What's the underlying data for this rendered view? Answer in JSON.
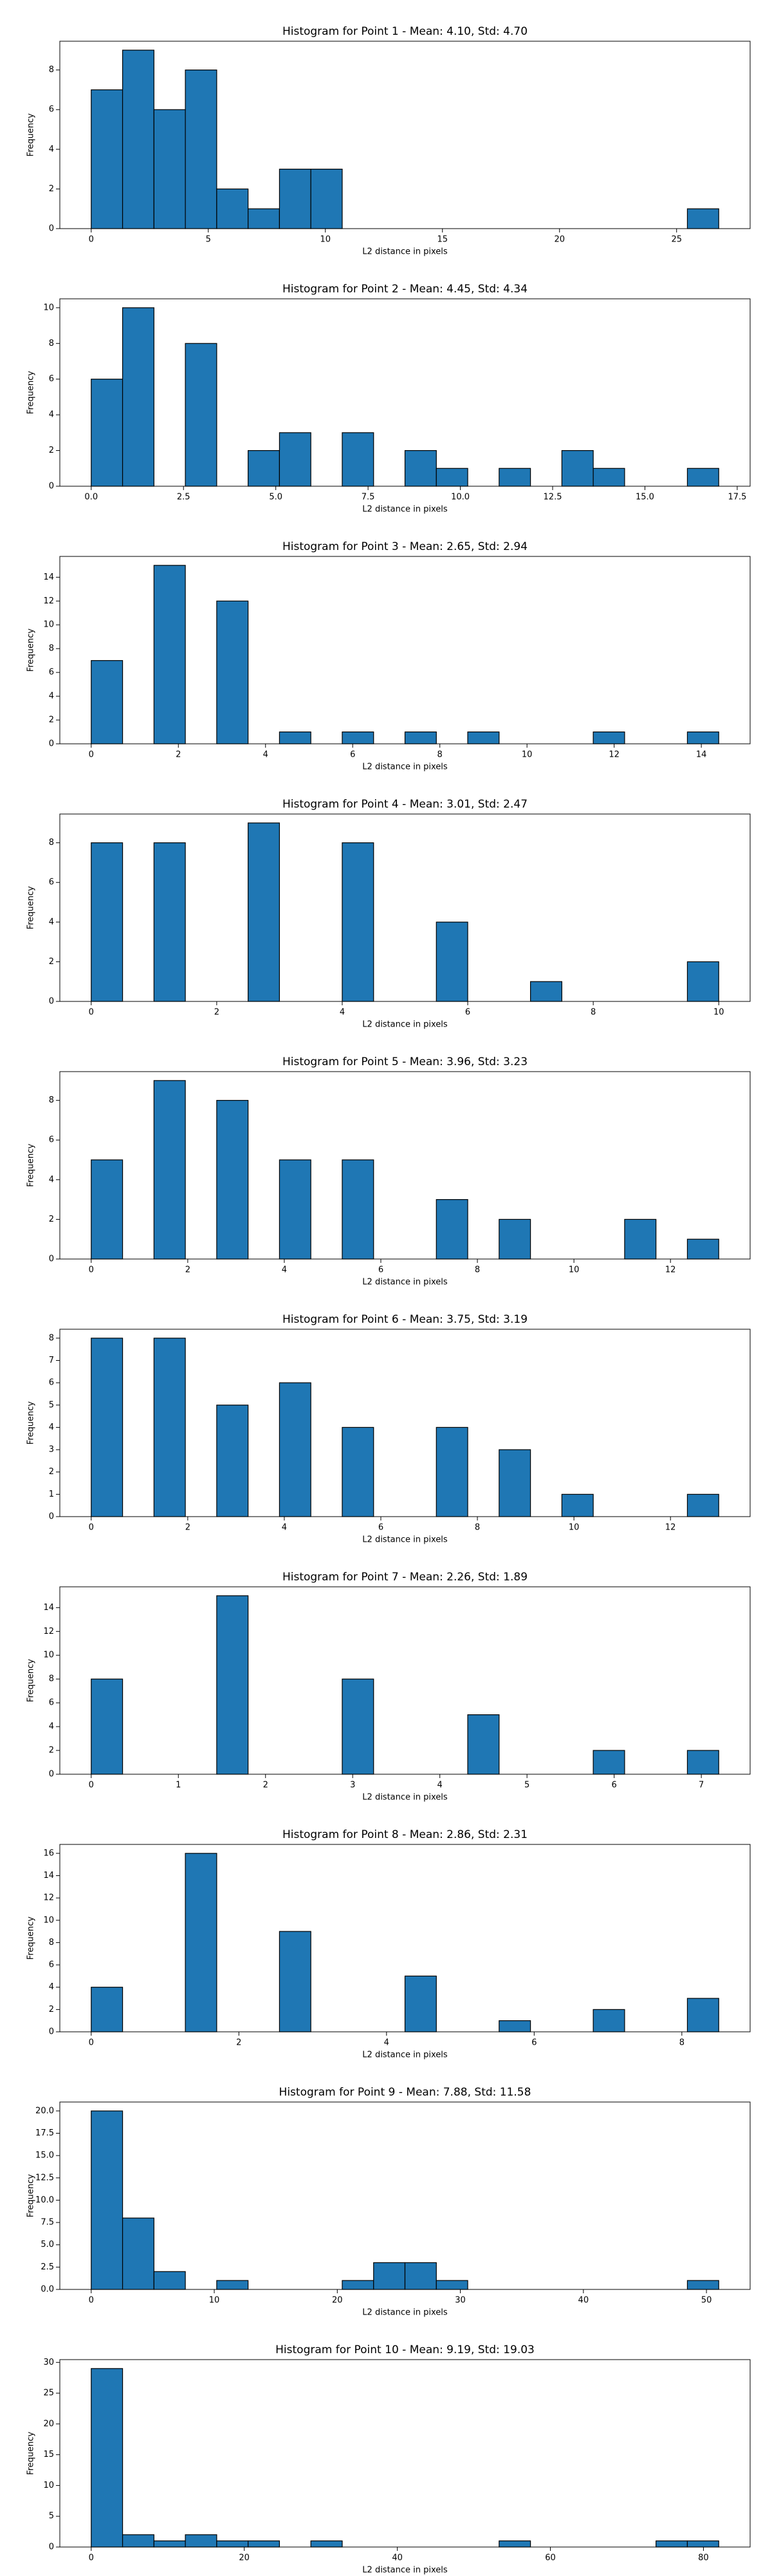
{
  "chart_data": [
    {
      "type": "histogram",
      "title": "Histogram for Point 1 - Mean: 4.10, Std: 4.70",
      "xlabel": "L2 distance in pixels",
      "ylabel": "Frequency",
      "color": "#1f77b4",
      "edgecolor": "#000000",
      "bins": [
        0,
        1.34,
        2.68,
        4.02,
        5.36,
        6.7,
        8.04,
        9.38,
        10.72,
        12.06,
        13.4,
        14.74,
        16.08,
        17.42,
        18.76,
        20.1,
        21.44,
        22.78,
        24.12,
        25.46,
        26.8
      ],
      "values": [
        7,
        9,
        6,
        8,
        2,
        1,
        3,
        3,
        0,
        0,
        0,
        0,
        0,
        0,
        0,
        0,
        0,
        0,
        0,
        1
      ],
      "xlim": [
        -1.34,
        28.14
      ],
      "ylim": [
        0,
        9.45
      ],
      "xticks": [
        0,
        5,
        10,
        15,
        20,
        25
      ],
      "yticks": [
        0,
        2,
        4,
        6,
        8
      ]
    },
    {
      "type": "histogram",
      "title": "Histogram for Point 2 - Mean: 4.45, Std: 4.34",
      "xlabel": "L2 distance in pixels",
      "ylabel": "Frequency",
      "color": "#1f77b4",
      "edgecolor": "#000000",
      "bins": [
        0,
        0.85,
        1.7,
        2.55,
        3.4,
        4.25,
        5.1,
        5.95,
        6.8,
        7.65,
        8.5,
        9.35,
        10.2,
        11.05,
        11.9,
        12.75,
        13.6,
        14.45,
        15.3,
        16.15,
        17
      ],
      "values": [
        6,
        10,
        0,
        8,
        0,
        2,
        3,
        0,
        3,
        0,
        2,
        1,
        0,
        1,
        0,
        2,
        1,
        0,
        0,
        1
      ],
      "xlim": [
        -0.85,
        17.85
      ],
      "ylim": [
        0,
        10.5
      ],
      "xticks": [
        {
          "value": 0,
          "label": "0.0"
        },
        2.5,
        {
          "value": 5,
          "label": "5.0"
        },
        7.5,
        {
          "value": 10,
          "label": "10.0"
        },
        12.5,
        {
          "value": 15,
          "label": "15.0"
        },
        17.5
      ],
      "yticks": [
        0,
        2,
        4,
        6,
        8,
        10
      ]
    },
    {
      "type": "histogram",
      "title": "Histogram for Point 3 - Mean: 2.65, Std: 2.94",
      "xlabel": "L2 distance in pixels",
      "ylabel": "Frequency",
      "color": "#1f77b4",
      "edgecolor": "#000000",
      "bins": [
        0,
        0.72,
        1.44,
        2.16,
        2.88,
        3.6,
        4.32,
        5.04,
        5.76,
        6.48,
        7.2,
        7.92,
        8.64,
        9.36,
        10.08,
        10.8,
        11.52,
        12.24,
        12.96,
        13.68,
        14.4
      ],
      "values": [
        7,
        0,
        15,
        0,
        12,
        0,
        1,
        0,
        1,
        0,
        1,
        0,
        1,
        0,
        0,
        0,
        1,
        0,
        0,
        1
      ],
      "xlim": [
        -0.72,
        15.12
      ],
      "ylim": [
        0,
        15.75
      ],
      "xticks": [
        0,
        2,
        4,
        6,
        8,
        10,
        12,
        14
      ],
      "yticks": [
        0,
        2,
        4,
        6,
        8,
        10,
        12,
        14
      ]
    },
    {
      "type": "histogram",
      "title": "Histogram for Point 4 - Mean: 3.01, Std: 2.47",
      "xlabel": "L2 distance in pixels",
      "ylabel": "Frequency",
      "color": "#1f77b4",
      "edgecolor": "#000000",
      "bins": [
        0,
        0.5,
        1,
        1.5,
        2,
        2.5,
        3,
        3.5,
        4,
        4.5,
        5,
        5.5,
        6,
        6.5,
        7,
        7.5,
        8,
        8.5,
        9,
        9.5,
        10
      ],
      "values": [
        8,
        0,
        8,
        0,
        0,
        9,
        0,
        0,
        8,
        0,
        0,
        4,
        0,
        0,
        1,
        0,
        0,
        0,
        0,
        2
      ],
      "xlim": [
        -0.5,
        10.5
      ],
      "ylim": [
        0,
        9.45
      ],
      "xticks": [
        0,
        2,
        4,
        6,
        8,
        10
      ],
      "yticks": [
        0,
        2,
        4,
        6,
        8
      ]
    },
    {
      "type": "histogram",
      "title": "Histogram for Point 5 - Mean: 3.96, Std: 3.23",
      "xlabel": "L2 distance in pixels",
      "ylabel": "Frequency",
      "color": "#1f77b4",
      "edgecolor": "#000000",
      "bins": [
        0,
        0.65,
        1.3,
        1.95,
        2.6,
        3.25,
        3.9,
        4.55,
        5.2,
        5.85,
        6.5,
        7.15,
        7.8,
        8.45,
        9.1,
        9.75,
        10.4,
        11.05,
        11.7,
        12.35,
        13
      ],
      "values": [
        5,
        0,
        9,
        0,
        8,
        0,
        5,
        0,
        5,
        0,
        0,
        3,
        0,
        2,
        0,
        0,
        0,
        2,
        0,
        1
      ],
      "xlim": [
        -0.65,
        13.65
      ],
      "ylim": [
        0,
        9.45
      ],
      "xticks": [
        0,
        2,
        4,
        6,
        8,
        10,
        12
      ],
      "yticks": [
        0,
        2,
        4,
        6,
        8
      ]
    },
    {
      "type": "histogram",
      "title": "Histogram for Point 6 - Mean: 3.75, Std: 3.19",
      "xlabel": "L2 distance in pixels",
      "ylabel": "Frequency",
      "color": "#1f77b4",
      "edgecolor": "#000000",
      "bins": [
        0,
        0.65,
        1.3,
        1.95,
        2.6,
        3.25,
        3.9,
        4.55,
        5.2,
        5.85,
        6.5,
        7.15,
        7.8,
        8.45,
        9.1,
        9.75,
        10.4,
        11.05,
        11.7,
        12.35,
        13
      ],
      "values": [
        8,
        0,
        8,
        0,
        5,
        0,
        6,
        0,
        4,
        0,
        0,
        4,
        0,
        3,
        0,
        1,
        0,
        0,
        0,
        1
      ],
      "xlim": [
        -0.65,
        13.65
      ],
      "ylim": [
        0,
        8.4
      ],
      "xticks": [
        0,
        2,
        4,
        6,
        8,
        10,
        12
      ],
      "yticks": [
        0,
        1,
        2,
        3,
        4,
        5,
        6,
        7,
        8
      ]
    },
    {
      "type": "histogram",
      "title": "Histogram for Point 7 - Mean: 2.26, Std: 1.89",
      "xlabel": "L2 distance in pixels",
      "ylabel": "Frequency",
      "color": "#1f77b4",
      "edgecolor": "#000000",
      "bins": [
        0,
        0.36,
        0.72,
        1.08,
        1.44,
        1.8,
        2.16,
        2.52,
        2.88,
        3.24,
        3.6,
        3.96,
        4.32,
        4.68,
        5.04,
        5.4,
        5.76,
        6.12,
        6.48,
        6.84,
        7.2
      ],
      "values": [
        8,
        0,
        0,
        0,
        15,
        0,
        0,
        0,
        8,
        0,
        0,
        0,
        5,
        0,
        0,
        0,
        2,
        0,
        0,
        2
      ],
      "xlim": [
        -0.36,
        7.56
      ],
      "ylim": [
        0,
        15.75
      ],
      "xticks": [
        0,
        1,
        2,
        3,
        4,
        5,
        6,
        7
      ],
      "yticks": [
        0,
        2,
        4,
        6,
        8,
        10,
        12,
        14
      ]
    },
    {
      "type": "histogram",
      "title": "Histogram for Point 8 - Mean: 2.86, Std: 2.31",
      "xlabel": "L2 distance in pixels",
      "ylabel": "Frequency",
      "color": "#1f77b4",
      "edgecolor": "#000000",
      "bins": [
        0,
        0.425,
        0.85,
        1.275,
        1.7,
        2.125,
        2.55,
        2.975,
        3.4,
        3.825,
        4.25,
        4.675,
        5.1,
        5.525,
        5.95,
        6.375,
        6.8,
        7.225,
        7.65,
        8.075,
        8.5
      ],
      "values": [
        4,
        0,
        0,
        16,
        0,
        0,
        9,
        0,
        0,
        0,
        5,
        0,
        0,
        1,
        0,
        0,
        2,
        0,
        0,
        3
      ],
      "xlim": [
        -0.425,
        8.925
      ],
      "ylim": [
        0,
        16.8
      ],
      "xticks": [
        0,
        2,
        4,
        6,
        8
      ],
      "yticks": [
        0,
        2,
        4,
        6,
        8,
        10,
        12,
        14,
        16
      ]
    },
    {
      "type": "histogram",
      "title": "Histogram for Point 9 - Mean: 7.88, Std: 11.58",
      "xlabel": "L2 distance in pixels",
      "ylabel": "Frequency",
      "color": "#1f77b4",
      "edgecolor": "#000000",
      "bins": [
        0,
        2.55,
        5.1,
        7.65,
        10.2,
        12.75,
        15.3,
        17.85,
        20.4,
        22.95,
        25.5,
        28.05,
        30.6,
        33.15,
        35.7,
        38.25,
        40.8,
        43.35,
        45.9,
        48.45,
        51
      ],
      "values": [
        20,
        8,
        2,
        0,
        1,
        0,
        0,
        0,
        1,
        3,
        3,
        1,
        0,
        0,
        0,
        0,
        0,
        0,
        0,
        1
      ],
      "xlim": [
        -2.55,
        53.55
      ],
      "ylim": [
        0,
        21
      ],
      "xticks": [
        0,
        10,
        20,
        30,
        40,
        50
      ],
      "yticks": [
        {
          "value": 0,
          "label": "0.0"
        },
        2.5,
        {
          "value": 5,
          "label": "5.0"
        },
        7.5,
        {
          "value": 10,
          "label": "10.0"
        },
        12.5,
        {
          "value": 15,
          "label": "15.0"
        },
        17.5,
        {
          "value": 20,
          "label": "20.0"
        }
      ]
    },
    {
      "type": "histogram",
      "title": "Histogram for Point 10 - Mean: 9.19, Std: 19.03",
      "xlabel": "L2 distance in pixels",
      "ylabel": "Frequency",
      "color": "#1f77b4",
      "edgecolor": "#000000",
      "bins": [
        0,
        4.1,
        8.2,
        12.3,
        16.4,
        20.5,
        24.6,
        28.7,
        32.8,
        36.9,
        41,
        45.1,
        49.2,
        53.3,
        57.4,
        61.5,
        65.6,
        69.7,
        73.8,
        77.9,
        82
      ],
      "values": [
        29,
        2,
        1,
        2,
        1,
        1,
        0,
        1,
        0,
        0,
        0,
        0,
        0,
        1,
        0,
        0,
        0,
        0,
        1,
        1
      ],
      "xlim": [
        -4.1,
        86.1
      ],
      "ylim": [
        0,
        30.45
      ],
      "xticks": [
        0,
        20,
        40,
        60,
        80
      ],
      "yticks": [
        0,
        5,
        10,
        15,
        20,
        25,
        30
      ]
    }
  ]
}
